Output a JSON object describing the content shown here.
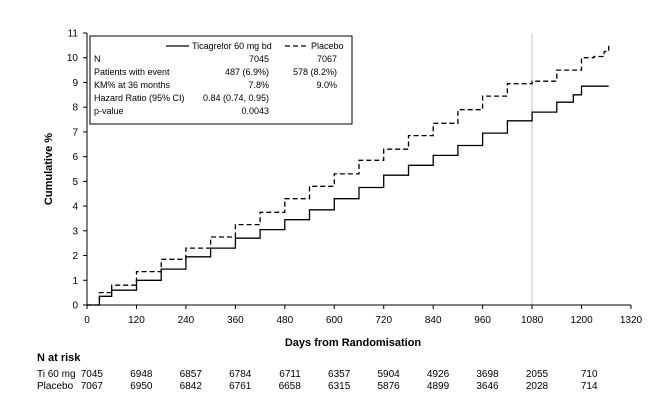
{
  "chart_data": {
    "type": "line",
    "xlabel": "Days from Randomisation",
    "ylabel": "Cumulative %",
    "xlim": [
      0,
      1320
    ],
    "ylim": [
      0,
      11
    ],
    "xticks": [
      0,
      120,
      240,
      360,
      480,
      600,
      720,
      840,
      960,
      1080,
      1200,
      1320
    ],
    "yticks": [
      0,
      1,
      2,
      3,
      4,
      5,
      6,
      7,
      8,
      9,
      10,
      11
    ],
    "reference_line_x": 1080,
    "series": [
      {
        "name": "Ticagrelor 60 mg bd",
        "style": "solid",
        "x": [
          0,
          30,
          60,
          120,
          180,
          240,
          300,
          360,
          420,
          480,
          540,
          600,
          660,
          720,
          780,
          840,
          900,
          960,
          1020,
          1080,
          1140,
          1180,
          1200,
          1266
        ],
        "y": [
          0,
          0.35,
          0.6,
          1.0,
          1.45,
          1.95,
          2.3,
          2.7,
          3.05,
          3.45,
          3.85,
          4.3,
          4.75,
          5.25,
          5.65,
          6.05,
          6.45,
          6.95,
          7.45,
          7.8,
          8.2,
          8.5,
          8.85,
          8.85
        ]
      },
      {
        "name": "Placebo",
        "style": "dashed",
        "x": [
          0,
          30,
          60,
          120,
          180,
          240,
          300,
          360,
          420,
          480,
          540,
          600,
          660,
          720,
          780,
          840,
          900,
          960,
          1020,
          1080,
          1140,
          1200,
          1230,
          1255,
          1266
        ],
        "y": [
          0,
          0.5,
          0.8,
          1.35,
          1.85,
          2.3,
          2.75,
          3.25,
          3.75,
          4.3,
          4.8,
          5.3,
          5.85,
          6.3,
          6.85,
          7.35,
          7.9,
          8.45,
          8.95,
          9.05,
          9.5,
          10.0,
          10.05,
          10.25,
          10.6
        ]
      }
    ],
    "legend": {
      "columns": [
        "Ticagrelor 60 mg bd",
        "Placebo"
      ],
      "rows": [
        {
          "label": "N",
          "ti": "7045",
          "pl": "7067"
        },
        {
          "label": "Patients with event",
          "ti": "487 (6.9%)",
          "pl": "578 (8.2%)"
        },
        {
          "label": "KM% at 36 months",
          "ti": "7.8%",
          "pl": "9.0%"
        },
        {
          "label": "Hazard Ratio (95% CI)",
          "ti": "0.84 (0.74, 0.95)",
          "pl": ""
        },
        {
          "label": "p-value",
          "ti": "0.0043",
          "pl": ""
        }
      ]
    },
    "at_risk": {
      "title": "N at risk",
      "rows": [
        {
          "label": "Ti 60 mg",
          "values": [
            "7045",
            "6948",
            "6857",
            "6784",
            "6711",
            "6357",
            "5904",
            "4926",
            "3698",
            "2055",
            "710"
          ]
        },
        {
          "label": "Placebo",
          "values": [
            "7067",
            "6950",
            "6842",
            "6761",
            "6658",
            "6315",
            "5876",
            "4899",
            "3646",
            "2028",
            "714"
          ]
        }
      ]
    }
  }
}
